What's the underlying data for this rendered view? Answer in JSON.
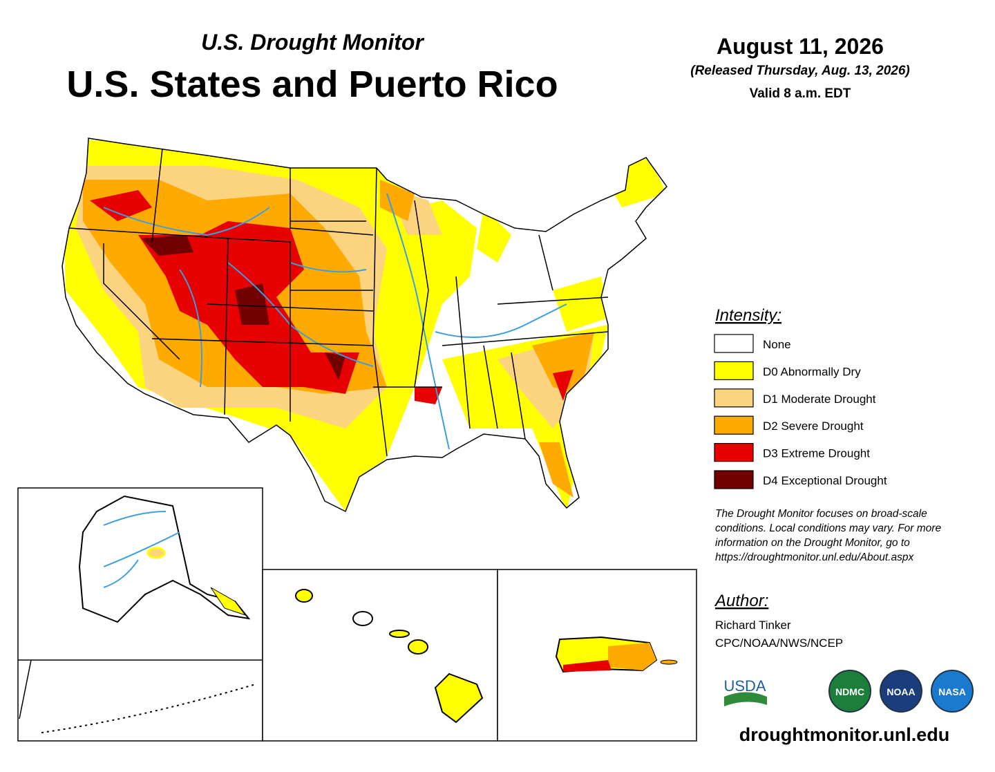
{
  "header": {
    "subtitle": "U.S. Drought Monitor",
    "title": "U.S. States and Puerto Rico"
  },
  "date": {
    "date": "August 11, 2026",
    "released": "(Released Thursday, Aug. 13, 2026)",
    "valid": "Valid 8 a.m. EDT"
  },
  "legend": {
    "title": "Intensity:",
    "items": [
      {
        "label": "None",
        "color": "#ffffff"
      },
      {
        "label": "D0 Abnormally Dry",
        "color": "#ffff00"
      },
      {
        "label": "D1 Moderate Drought",
        "color": "#fcd37f"
      },
      {
        "label": "D2 Severe Drought",
        "color": "#ffaa00"
      },
      {
        "label": "D3 Extreme Drought",
        "color": "#e60000"
      },
      {
        "label": "D4 Exceptional Drought",
        "color": "#730000"
      }
    ]
  },
  "note": [
    "The Drought Monitor focuses on broad-scale",
    "conditions. Local conditions may vary. For more",
    "information on the Drought Monitor, go to",
    "https://droughtmonitor.unl.edu/About.aspx"
  ],
  "author": {
    "heading": "Author:",
    "name": "Richard Tinker",
    "org": "CPC/NOAA/NWS/NCEP"
  },
  "logos": [
    "USDA",
    "NDMC",
    "NOAA",
    "NASA"
  ],
  "website": "droughtmonitor.unl.edu"
}
